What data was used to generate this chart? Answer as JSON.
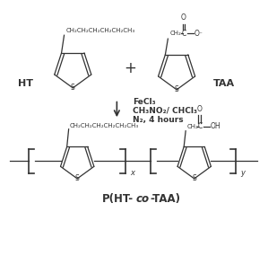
{
  "bg_color": "#ffffff",
  "line_color": "#333333",
  "conditions": [
    "FeCl₃",
    "CH₃NO₂/ CHCl₃",
    "N₂, 4 hours"
  ],
  "label_HT": "HT",
  "label_TAA": "TAA",
  "fontsize_label": 8,
  "fontsize_chem_small": 5.0,
  "fontsize_s": 5.5,
  "fontsize_conditions": 6.5
}
